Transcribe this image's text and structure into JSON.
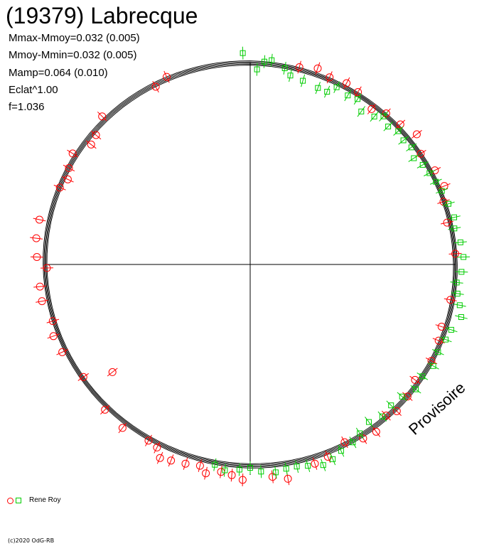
{
  "title": "(19379) Labrecque",
  "stats": [
    "Mmax-Mmoy=0.032 (0.005)",
    "Mmoy-Mmin=0.032 (0.005)",
    "Mamp=0.064 (0.010)",
    "Eclat^1.00",
    "f=1.036"
  ],
  "legend": {
    "observer": "Rene Roy"
  },
  "watermark": "Provisoire",
  "copyright": "(c)2020 OdG-RB",
  "colors": {
    "series_red": "#ff0000",
    "series_green": "#00cc00",
    "axes": "#000000"
  },
  "chart_data": {
    "type": "scatter",
    "description_of_encoding": "polar lightcurve: angle = rotational phase (counter-clockwise from +x axis), radius = relative brightness",
    "phase_unit": "degrees",
    "grid": false,
    "legend_position": "bottom-left",
    "model_curves_count": 5,
    "series": [
      {
        "marker": "circle",
        "color": "#ff0000",
        "points": [
          {
            "phase": 268,
            "r": 1.06
          },
          {
            "phase": 265,
            "r": 1.04
          },
          {
            "phase": 262,
            "r": 1.03
          },
          {
            "phase": 258,
            "r": 1.05
          },
          {
            "phase": 256,
            "r": 1.02
          },
          {
            "phase": 252,
            "r": 1.03
          },
          {
            "phase": 248,
            "r": 1.04
          },
          {
            "phase": 245,
            "r": 1.05
          },
          {
            "phase": 243,
            "r": 1.01
          },
          {
            "phase": 240,
            "r": 1.0
          },
          {
            "phase": 232,
            "r": 1.02
          },
          {
            "phase": 225,
            "r": 1.01
          },
          {
            "phase": 218,
            "r": 0.86
          },
          {
            "phase": 214,
            "r": 0.99
          },
          {
            "phase": 205,
            "r": 1.02
          },
          {
            "phase": 200,
            "r": 1.03
          },
          {
            "phase": 196,
            "r": 1.01
          },
          {
            "phase": 190,
            "r": 1.04
          },
          {
            "phase": 186,
            "r": 1.04
          },
          {
            "phase": 181,
            "r": 1.0
          },
          {
            "phase": 178,
            "r": 1.05
          },
          {
            "phase": 173,
            "r": 1.06
          },
          {
            "phase": 168,
            "r": 1.06
          },
          {
            "phase": 158,
            "r": 1.01
          },
          {
            "phase": 155,
            "r": 0.99
          },
          {
            "phase": 152,
            "r": 1.01
          },
          {
            "phase": 148,
            "r": 1.03
          },
          {
            "phase": 143,
            "r": 0.98
          },
          {
            "phase": 140,
            "r": 0.99
          },
          {
            "phase": 135,
            "r": 1.03
          },
          {
            "phase": 118,
            "r": 0.99
          },
          {
            "phase": 114,
            "r": 1.01
          },
          {
            "phase": 76,
            "r": 1.0
          },
          {
            "phase": 71,
            "r": 1.02
          },
          {
            "phase": 67,
            "r": 1.0
          },
          {
            "phase": 62,
            "r": 1.01
          },
          {
            "phase": 58,
            "r": 1.0
          },
          {
            "phase": 52,
            "r": 0.97
          },
          {
            "phase": 48,
            "r": 1.0
          },
          {
            "phase": 43,
            "r": 1.01
          },
          {
            "phase": 38,
            "r": 1.04
          },
          {
            "phase": 33,
            "r": 1.0
          },
          {
            "phase": 27,
            "r": 1.02
          },
          {
            "phase": 22,
            "r": 1.03
          },
          {
            "phase": 18,
            "r": 1.0
          },
          {
            "phase": 12,
            "r": 0.99
          },
          {
            "phase": 3,
            "r": 1.01
          },
          {
            "phase": -10,
            "r": 1.0
          },
          {
            "phase": -18,
            "r": 0.99
          },
          {
            "phase": -22,
            "r": 1.0
          },
          {
            "phase": -28,
            "r": 1.01
          },
          {
            "phase": -35,
            "r": 0.99
          },
          {
            "phase": -40,
            "r": 1.01
          },
          {
            "phase": -45,
            "r": 1.02
          },
          {
            "phase": -48,
            "r": 1.0
          },
          {
            "phase": -53,
            "r": 1.03
          },
          {
            "phase": -57,
            "r": 1.02
          },
          {
            "phase": -62,
            "r": 0.99
          },
          {
            "phase": -68,
            "r": 1.02
          },
          {
            "phase": -72,
            "r": 1.03
          },
          {
            "phase": -80,
            "r": 1.07
          },
          {
            "phase": -84,
            "r": 1.05
          }
        ]
      },
      {
        "marker": "square",
        "color": "#00cc00",
        "points": [
          {
            "phase": 92,
            "r": 1.04
          },
          {
            "phase": 88,
            "r": 0.96
          },
          {
            "phase": 86,
            "r": 1.0
          },
          {
            "phase": 84,
            "r": 1.01
          },
          {
            "phase": 80,
            "r": 0.98
          },
          {
            "phase": 78,
            "r": 0.95
          },
          {
            "phase": 74,
            "r": 0.94
          },
          {
            "phase": 69,
            "r": 0.93
          },
          {
            "phase": 66,
            "r": 0.93
          },
          {
            "phase": 64,
            "r": 0.97
          },
          {
            "phase": 60,
            "r": 0.96
          },
          {
            "phase": 57,
            "r": 0.97
          },
          {
            "phase": 54,
            "r": 0.93
          },
          {
            "phase": 50,
            "r": 0.95
          },
          {
            "phase": 48,
            "r": 0.98
          },
          {
            "phase": 45,
            "r": 0.96
          },
          {
            "phase": 42,
            "r": 0.98
          },
          {
            "phase": 39,
            "r": 0.97
          },
          {
            "phase": 36,
            "r": 0.98
          },
          {
            "phase": 33,
            "r": 0.96
          },
          {
            "phase": 30,
            "r": 0.98
          },
          {
            "phase": 27,
            "r": 0.99
          },
          {
            "phase": 24,
            "r": 1.0
          },
          {
            "phase": 21,
            "r": 1.01
          },
          {
            "phase": 17,
            "r": 1.02
          },
          {
            "phase": 13,
            "r": 1.03
          },
          {
            "phase": 10,
            "r": 1.02
          },
          {
            "phase": 6,
            "r": 1.04
          },
          {
            "phase": 2,
            "r": 1.05
          },
          {
            "phase": -2,
            "r": 1.04
          },
          {
            "phase": -5,
            "r": 1.02
          },
          {
            "phase": -8,
            "r": 1.03
          },
          {
            "phase": -11,
            "r": 1.05
          },
          {
            "phase": -14,
            "r": 1.07
          },
          {
            "phase": -18,
            "r": 1.04
          },
          {
            "phase": -21,
            "r": 1.03
          },
          {
            "phase": -25,
            "r": 1.02
          },
          {
            "phase": -29,
            "r": 1.03
          },
          {
            "phase": -33,
            "r": 1.01
          },
          {
            "phase": -37,
            "r": 1.02
          },
          {
            "phase": -41,
            "r": 0.99
          },
          {
            "phase": -45,
            "r": 0.98
          },
          {
            "phase": -49,
            "r": 0.99
          },
          {
            "phase": -53,
            "r": 0.97
          },
          {
            "phase": -57,
            "r": 0.99
          },
          {
            "phase": -60,
            "r": 1.01
          },
          {
            "phase": -64,
            "r": 1.02
          },
          {
            "phase": -67,
            "r": 1.04
          },
          {
            "phase": -70,
            "r": 1.05
          },
          {
            "phase": -74,
            "r": 1.03
          },
          {
            "phase": -77,
            "r": 1.02
          },
          {
            "phase": -80,
            "r": 1.02
          },
          {
            "phase": -83,
            "r": 1.03
          },
          {
            "phase": -87,
            "r": 1.02
          },
          {
            "phase": -90,
            "r": 1.0
          },
          {
            "phase": -93,
            "r": 1.01
          },
          {
            "phase": -97,
            "r": 1.02
          },
          {
            "phase": -100,
            "r": 1.0
          }
        ]
      }
    ]
  }
}
